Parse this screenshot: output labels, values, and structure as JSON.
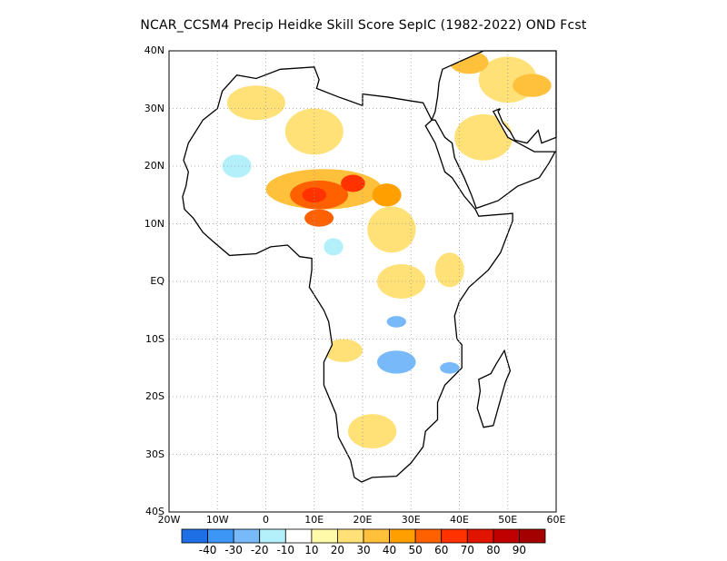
{
  "title": "NCAR_CCSM4 Precip Heidke Skill Score SepIC (1982-2022) OND Fcst",
  "map": {
    "lon_range": [
      -20,
      60
    ],
    "lat_range": [
      -40,
      40
    ],
    "lat_ticks": [
      {
        "value": 40,
        "label": "40N"
      },
      {
        "value": 30,
        "label": "30N"
      },
      {
        "value": 20,
        "label": "20N"
      },
      {
        "value": 10,
        "label": "10N"
      },
      {
        "value": 0,
        "label": "EQ"
      },
      {
        "value": -10,
        "label": "10S"
      },
      {
        "value": -20,
        "label": "20S"
      },
      {
        "value": -30,
        "label": "30S"
      },
      {
        "value": -40,
        "label": "40S"
      }
    ],
    "lon_ticks": [
      {
        "value": -20,
        "label": "20W"
      },
      {
        "value": -10,
        "label": "10W"
      },
      {
        "value": 0,
        "label": "0"
      },
      {
        "value": 10,
        "label": "10E"
      },
      {
        "value": 20,
        "label": "20E"
      },
      {
        "value": 30,
        "label": "30E"
      },
      {
        "value": 40,
        "label": "40E"
      },
      {
        "value": 50,
        "label": "50E"
      },
      {
        "value": 60,
        "label": "60E"
      }
    ],
    "grid": true,
    "colors": {
      "land_outline": "#000000",
      "grid": "#9a9a9a"
    },
    "skill_regions": [
      {
        "level": 30,
        "lon": 12,
        "lat": 16,
        "rx": 12,
        "ry": 3.5
      },
      {
        "level": 50,
        "lon": 11,
        "lat": 15,
        "rx": 6,
        "ry": 2.5
      },
      {
        "level": 60,
        "lon": 10,
        "lat": 15,
        "rx": 2.5,
        "ry": 1.3
      },
      {
        "level": 60,
        "lon": 18,
        "lat": 17,
        "rx": 2.5,
        "ry": 1.5
      },
      {
        "level": 40,
        "lon": 25,
        "lat": 15,
        "rx": 3,
        "ry": 2
      },
      {
        "level": 50,
        "lon": 11,
        "lat": 11,
        "rx": 3,
        "ry": 1.5
      },
      {
        "level": 20,
        "lon": 10,
        "lat": 26,
        "rx": 6,
        "ry": 4
      },
      {
        "level": 20,
        "lon": -2,
        "lat": 31,
        "rx": 6,
        "ry": 3
      },
      {
        "level": 20,
        "lon": 26,
        "lat": 9,
        "rx": 5,
        "ry": 4
      },
      {
        "level": 20,
        "lon": 28,
        "lat": 0,
        "rx": 5,
        "ry": 3
      },
      {
        "level": 20,
        "lon": 38,
        "lat": 2,
        "rx": 3,
        "ry": 3
      },
      {
        "level": 20,
        "lon": 50,
        "lat": 35,
        "rx": 6,
        "ry": 4
      },
      {
        "level": 30,
        "lon": 55,
        "lat": 34,
        "rx": 4,
        "ry": 2
      },
      {
        "level": 30,
        "lon": 42,
        "lat": 38,
        "rx": 4,
        "ry": 2
      },
      {
        "level": 20,
        "lon": 45,
        "lat": 25,
        "rx": 6,
        "ry": 4
      },
      {
        "level": 20,
        "lon": 16,
        "lat": -12,
        "rx": 4,
        "ry": 2
      },
      {
        "level": 20,
        "lon": 22,
        "lat": -26,
        "rx": 5,
        "ry": 3
      },
      {
        "level": -20,
        "lon": 27,
        "lat": -14,
        "rx": 4,
        "ry": 2
      },
      {
        "level": -20,
        "lon": 38,
        "lat": -15,
        "rx": 2,
        "ry": 1
      },
      {
        "level": -10,
        "lon": 14,
        "lat": 6,
        "rx": 2,
        "ry": 1.5
      },
      {
        "level": -20,
        "lon": 27,
        "lat": -7,
        "rx": 2,
        "ry": 1
      },
      {
        "level": -10,
        "lon": -6,
        "lat": 20,
        "rx": 3,
        "ry": 2
      }
    ]
  },
  "colorbar": {
    "labels": [
      "-40",
      "-30",
      "-20",
      "-10",
      "10",
      "20",
      "30",
      "40",
      "50",
      "60",
      "70",
      "80",
      "90"
    ],
    "colors": [
      "#1e6ee6",
      "#3c96f5",
      "#78b9fa",
      "#b4f0fa",
      "#ffffff",
      "#fffaaa",
      "#ffe178",
      "#ffc03c",
      "#ffa000",
      "#ff6000",
      "#ff3200",
      "#e11400",
      "#c00000",
      "#a50000"
    ]
  }
}
